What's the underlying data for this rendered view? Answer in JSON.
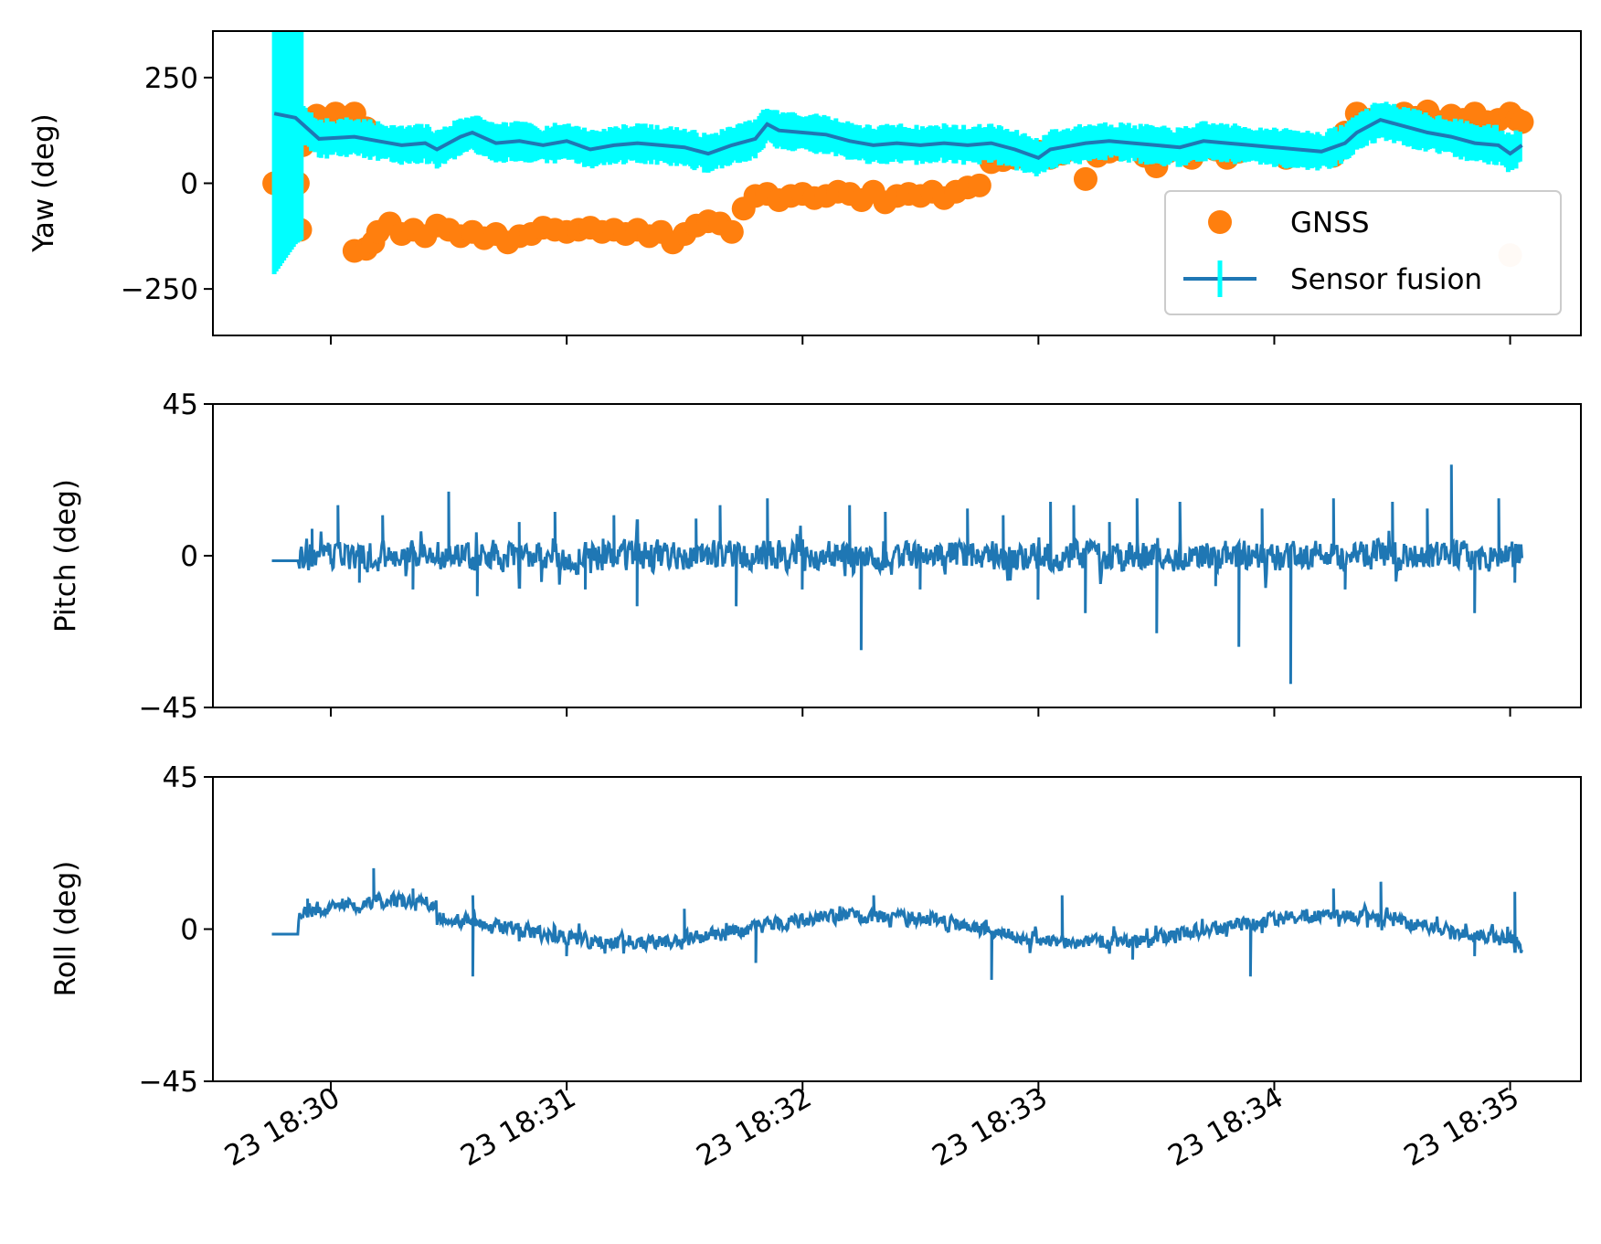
{
  "colors": {
    "gnss": "#ff7f0e",
    "fusion": "#1f77b4",
    "errorbar": "#00ffff",
    "axes": "#000000",
    "background": "#ffffff"
  },
  "chart_data": {
    "type": "line",
    "shared_x_ticks": [
      "23 18:30",
      "23 18:31",
      "23 18:32",
      "23 18:33",
      "23 18:34",
      "23 18:35"
    ],
    "x_tick_minutes": [
      0,
      1,
      2,
      3,
      4,
      5
    ],
    "xlim_minutes": [
      -0.5,
      5.3
    ],
    "data_range_minutes": [
      -0.25,
      5.05
    ],
    "legend": {
      "placement": "lower-right",
      "entries": [
        "GNSS",
        "Sensor fusion"
      ]
    },
    "panels": [
      {
        "id": "yaw",
        "ylabel": "Yaw (deg)",
        "ylim": [
          -360,
          360
        ],
        "yticks": [
          -250,
          0,
          250
        ],
        "ytick_labels": [
          "−250",
          "0",
          "250"
        ],
        "series": [
          {
            "name": "GNSS",
            "style": "scatter",
            "points": [
              [
                -0.24,
                0
              ],
              [
                -0.2,
                0
              ],
              [
                -0.14,
                0
              ],
              [
                -0.13,
                -110
              ],
              [
                -0.12,
                90
              ],
              [
                -0.1,
                120
              ],
              [
                -0.06,
                160
              ],
              [
                -0.02,
                150
              ],
              [
                0.02,
                165
              ],
              [
                0.06,
                155
              ],
              [
                0.1,
                165
              ],
              [
                0.15,
                130
              ],
              [
                0.1,
                -160
              ],
              [
                0.15,
                -155
              ],
              [
                0.18,
                -140
              ],
              [
                0.2,
                -115
              ],
              [
                0.25,
                -95
              ],
              [
                0.3,
                -120
              ],
              [
                0.35,
                -110
              ],
              [
                0.4,
                -125
              ],
              [
                0.45,
                -100
              ],
              [
                0.5,
                -110
              ],
              [
                0.55,
                -125
              ],
              [
                0.6,
                -115
              ],
              [
                0.65,
                -130
              ],
              [
                0.7,
                -120
              ],
              [
                0.75,
                -140
              ],
              [
                0.8,
                -125
              ],
              [
                0.85,
                -120
              ],
              [
                0.9,
                -105
              ],
              [
                0.95,
                -110
              ],
              [
                1.0,
                -115
              ],
              [
                1.05,
                -110
              ],
              [
                1.1,
                -105
              ],
              [
                1.15,
                -115
              ],
              [
                1.2,
                -110
              ],
              [
                1.25,
                -120
              ],
              [
                1.3,
                -110
              ],
              [
                1.35,
                -125
              ],
              [
                1.4,
                -115
              ],
              [
                1.45,
                -140
              ],
              [
                1.5,
                -120
              ],
              [
                1.55,
                -100
              ],
              [
                1.6,
                -90
              ],
              [
                1.65,
                -95
              ],
              [
                1.7,
                -115
              ],
              [
                1.75,
                -60
              ],
              [
                1.8,
                -30
              ],
              [
                1.85,
                -25
              ],
              [
                1.9,
                -40
              ],
              [
                1.95,
                -30
              ],
              [
                2.0,
                -25
              ],
              [
                2.05,
                -35
              ],
              [
                2.1,
                -30
              ],
              [
                2.15,
                -20
              ],
              [
                2.2,
                -25
              ],
              [
                2.25,
                -40
              ],
              [
                2.3,
                -20
              ],
              [
                2.35,
                -45
              ],
              [
                2.4,
                -30
              ],
              [
                2.45,
                -25
              ],
              [
                2.5,
                -30
              ],
              [
                2.55,
                -20
              ],
              [
                2.6,
                -35
              ],
              [
                2.65,
                -20
              ],
              [
                2.7,
                -10
              ],
              [
                2.75,
                -5
              ],
              [
                2.8,
                50
              ],
              [
                2.85,
                55
              ],
              [
                2.9,
                60
              ],
              [
                2.95,
                70
              ],
              [
                3.0,
                75
              ],
              [
                3.05,
                60
              ],
              [
                3.1,
                70
              ],
              [
                3.15,
                80
              ],
              [
                3.2,
                10
              ],
              [
                3.25,
                65
              ],
              [
                3.3,
                75
              ],
              [
                3.35,
                80
              ],
              [
                3.4,
                90
              ],
              [
                3.45,
                65
              ],
              [
                3.5,
                40
              ],
              [
                3.55,
                75
              ],
              [
                3.6,
                80
              ],
              [
                3.65,
                60
              ],
              [
                3.7,
                90
              ],
              [
                3.75,
                80
              ],
              [
                3.8,
                60
              ],
              [
                3.85,
                75
              ],
              [
                3.9,
                95
              ],
              [
                3.95,
                85
              ],
              [
                4.0,
                75
              ],
              [
                4.05,
                60
              ],
              [
                4.1,
                90
              ],
              [
                4.15,
                70
              ],
              [
                4.2,
                80
              ],
              [
                4.25,
                65
              ],
              [
                4.3,
                120
              ],
              [
                4.35,
                165
              ],
              [
                4.4,
                150
              ],
              [
                4.45,
                160
              ],
              [
                4.5,
                150
              ],
              [
                4.55,
                165
              ],
              [
                4.6,
                155
              ],
              [
                4.65,
                170
              ],
              [
                4.7,
                145
              ],
              [
                4.75,
                160
              ],
              [
                4.8,
                150
              ],
              [
                4.85,
                165
              ],
              [
                4.9,
                145
              ],
              [
                4.95,
                150
              ],
              [
                5.0,
                165
              ],
              [
                5.03,
                150
              ],
              [
                5.05,
                145
              ],
              [
                5.0,
                -170
              ]
            ]
          },
          {
            "name": "Sensor fusion",
            "style": "line-errorbar",
            "errorbar_halfwidth": 40,
            "points": [
              [
                -0.24,
                165
              ],
              [
                -0.15,
                155
              ],
              [
                -0.1,
                130
              ],
              [
                -0.05,
                105
              ],
              [
                0.1,
                110
              ],
              [
                0.2,
                100
              ],
              [
                0.3,
                90
              ],
              [
                0.4,
                95
              ],
              [
                0.45,
                80
              ],
              [
                0.55,
                110
              ],
              [
                0.6,
                120
              ],
              [
                0.7,
                95
              ],
              [
                0.8,
                100
              ],
              [
                0.9,
                90
              ],
              [
                1.0,
                100
              ],
              [
                1.1,
                80
              ],
              [
                1.2,
                90
              ],
              [
                1.3,
                95
              ],
              [
                1.4,
                90
              ],
              [
                1.5,
                85
              ],
              [
                1.6,
                70
              ],
              [
                1.7,
                90
              ],
              [
                1.8,
                105
              ],
              [
                1.85,
                140
              ],
              [
                1.9,
                125
              ],
              [
                2.0,
                120
              ],
              [
                2.1,
                115
              ],
              [
                2.2,
                100
              ],
              [
                2.3,
                90
              ],
              [
                2.4,
                95
              ],
              [
                2.5,
                90
              ],
              [
                2.6,
                95
              ],
              [
                2.7,
                90
              ],
              [
                2.8,
                95
              ],
              [
                2.9,
                80
              ],
              [
                3.0,
                60
              ],
              [
                3.05,
                80
              ],
              [
                3.1,
                85
              ],
              [
                3.2,
                95
              ],
              [
                3.3,
                100
              ],
              [
                3.4,
                95
              ],
              [
                3.5,
                90
              ],
              [
                3.6,
                85
              ],
              [
                3.7,
                100
              ],
              [
                3.8,
                95
              ],
              [
                3.9,
                90
              ],
              [
                4.0,
                85
              ],
              [
                4.1,
                80
              ],
              [
                4.2,
                75
              ],
              [
                4.3,
                95
              ],
              [
                4.35,
                120
              ],
              [
                4.45,
                150
              ],
              [
                4.55,
                135
              ],
              [
                4.65,
                120
              ],
              [
                4.75,
                110
              ],
              [
                4.85,
                95
              ],
              [
                4.95,
                90
              ],
              [
                5.0,
                70
              ],
              [
                5.05,
                90
              ]
            ]
          }
        ]
      },
      {
        "id": "pitch",
        "ylabel": "Pitch (deg)",
        "ylim": [
          -45,
          45
        ],
        "yticks": [
          -45,
          0,
          45
        ],
        "ytick_labels": [
          "−45",
          "0",
          "45"
        ],
        "series": [
          {
            "name": "Sensor fusion",
            "style": "noisy-line",
            "base_amplitude": 4,
            "spikes": [
              [
                -0.08,
                8
              ],
              [
                0.03,
                15
              ],
              [
                0.12,
                -8
              ],
              [
                0.22,
                12
              ],
              [
                0.35,
                -10
              ],
              [
                0.5,
                19
              ],
              [
                0.62,
                -12
              ],
              [
                0.8,
                10
              ],
              [
                0.95,
                13
              ],
              [
                1.08,
                -10
              ],
              [
                1.2,
                12
              ],
              [
                1.3,
                -15
              ],
              [
                1.55,
                11
              ],
              [
                1.65,
                15
              ],
              [
                1.72,
                -15
              ],
              [
                1.85,
                17
              ],
              [
                2.0,
                -10
              ],
              [
                2.2,
                15
              ],
              [
                2.25,
                -28
              ],
              [
                2.35,
                13
              ],
              [
                2.5,
                -10
              ],
              [
                2.7,
                14
              ],
              [
                2.85,
                12
              ],
              [
                3.0,
                -13
              ],
              [
                3.05,
                16
              ],
              [
                3.15,
                15
              ],
              [
                3.2,
                -17
              ],
              [
                3.3,
                10
              ],
              [
                3.42,
                17
              ],
              [
                3.5,
                -23
              ],
              [
                3.6,
                16
              ],
              [
                3.75,
                -9
              ],
              [
                3.85,
                -27
              ],
              [
                3.95,
                14
              ],
              [
                4.07,
                -38
              ],
              [
                4.25,
                17
              ],
              [
                4.3,
                -10
              ],
              [
                4.5,
                16
              ],
              [
                4.65,
                14
              ],
              [
                4.75,
                27
              ],
              [
                4.85,
                -17
              ],
              [
                4.95,
                17
              ],
              [
                5.02,
                -8
              ]
            ]
          }
        ]
      },
      {
        "id": "roll",
        "ylabel": "Roll (deg)",
        "ylim": [
          -45,
          45
        ],
        "yticks": [
          -45,
          0,
          45
        ],
        "ytick_labels": [
          "−45",
          "0",
          "45"
        ],
        "series": [
          {
            "name": "Sensor fusion",
            "style": "noisy-line",
            "base_amplitude": 2,
            "spikes": [
              [
                -0.1,
                9
              ],
              [
                0.05,
                9
              ],
              [
                0.18,
                18
              ],
              [
                0.35,
                12
              ],
              [
                0.6,
                -14
              ],
              [
                0.6,
                10
              ],
              [
                1.0,
                -8
              ],
              [
                1.5,
                6
              ],
              [
                1.8,
                -10
              ],
              [
                2.3,
                10
              ],
              [
                2.8,
                -15
              ],
              [
                3.1,
                10
              ],
              [
                3.4,
                -9
              ],
              [
                3.9,
                -14
              ],
              [
                4.25,
                12
              ],
              [
                4.45,
                14
              ],
              [
                4.85,
                -8
              ],
              [
                5.02,
                11
              ]
            ]
          }
        ]
      }
    ]
  }
}
